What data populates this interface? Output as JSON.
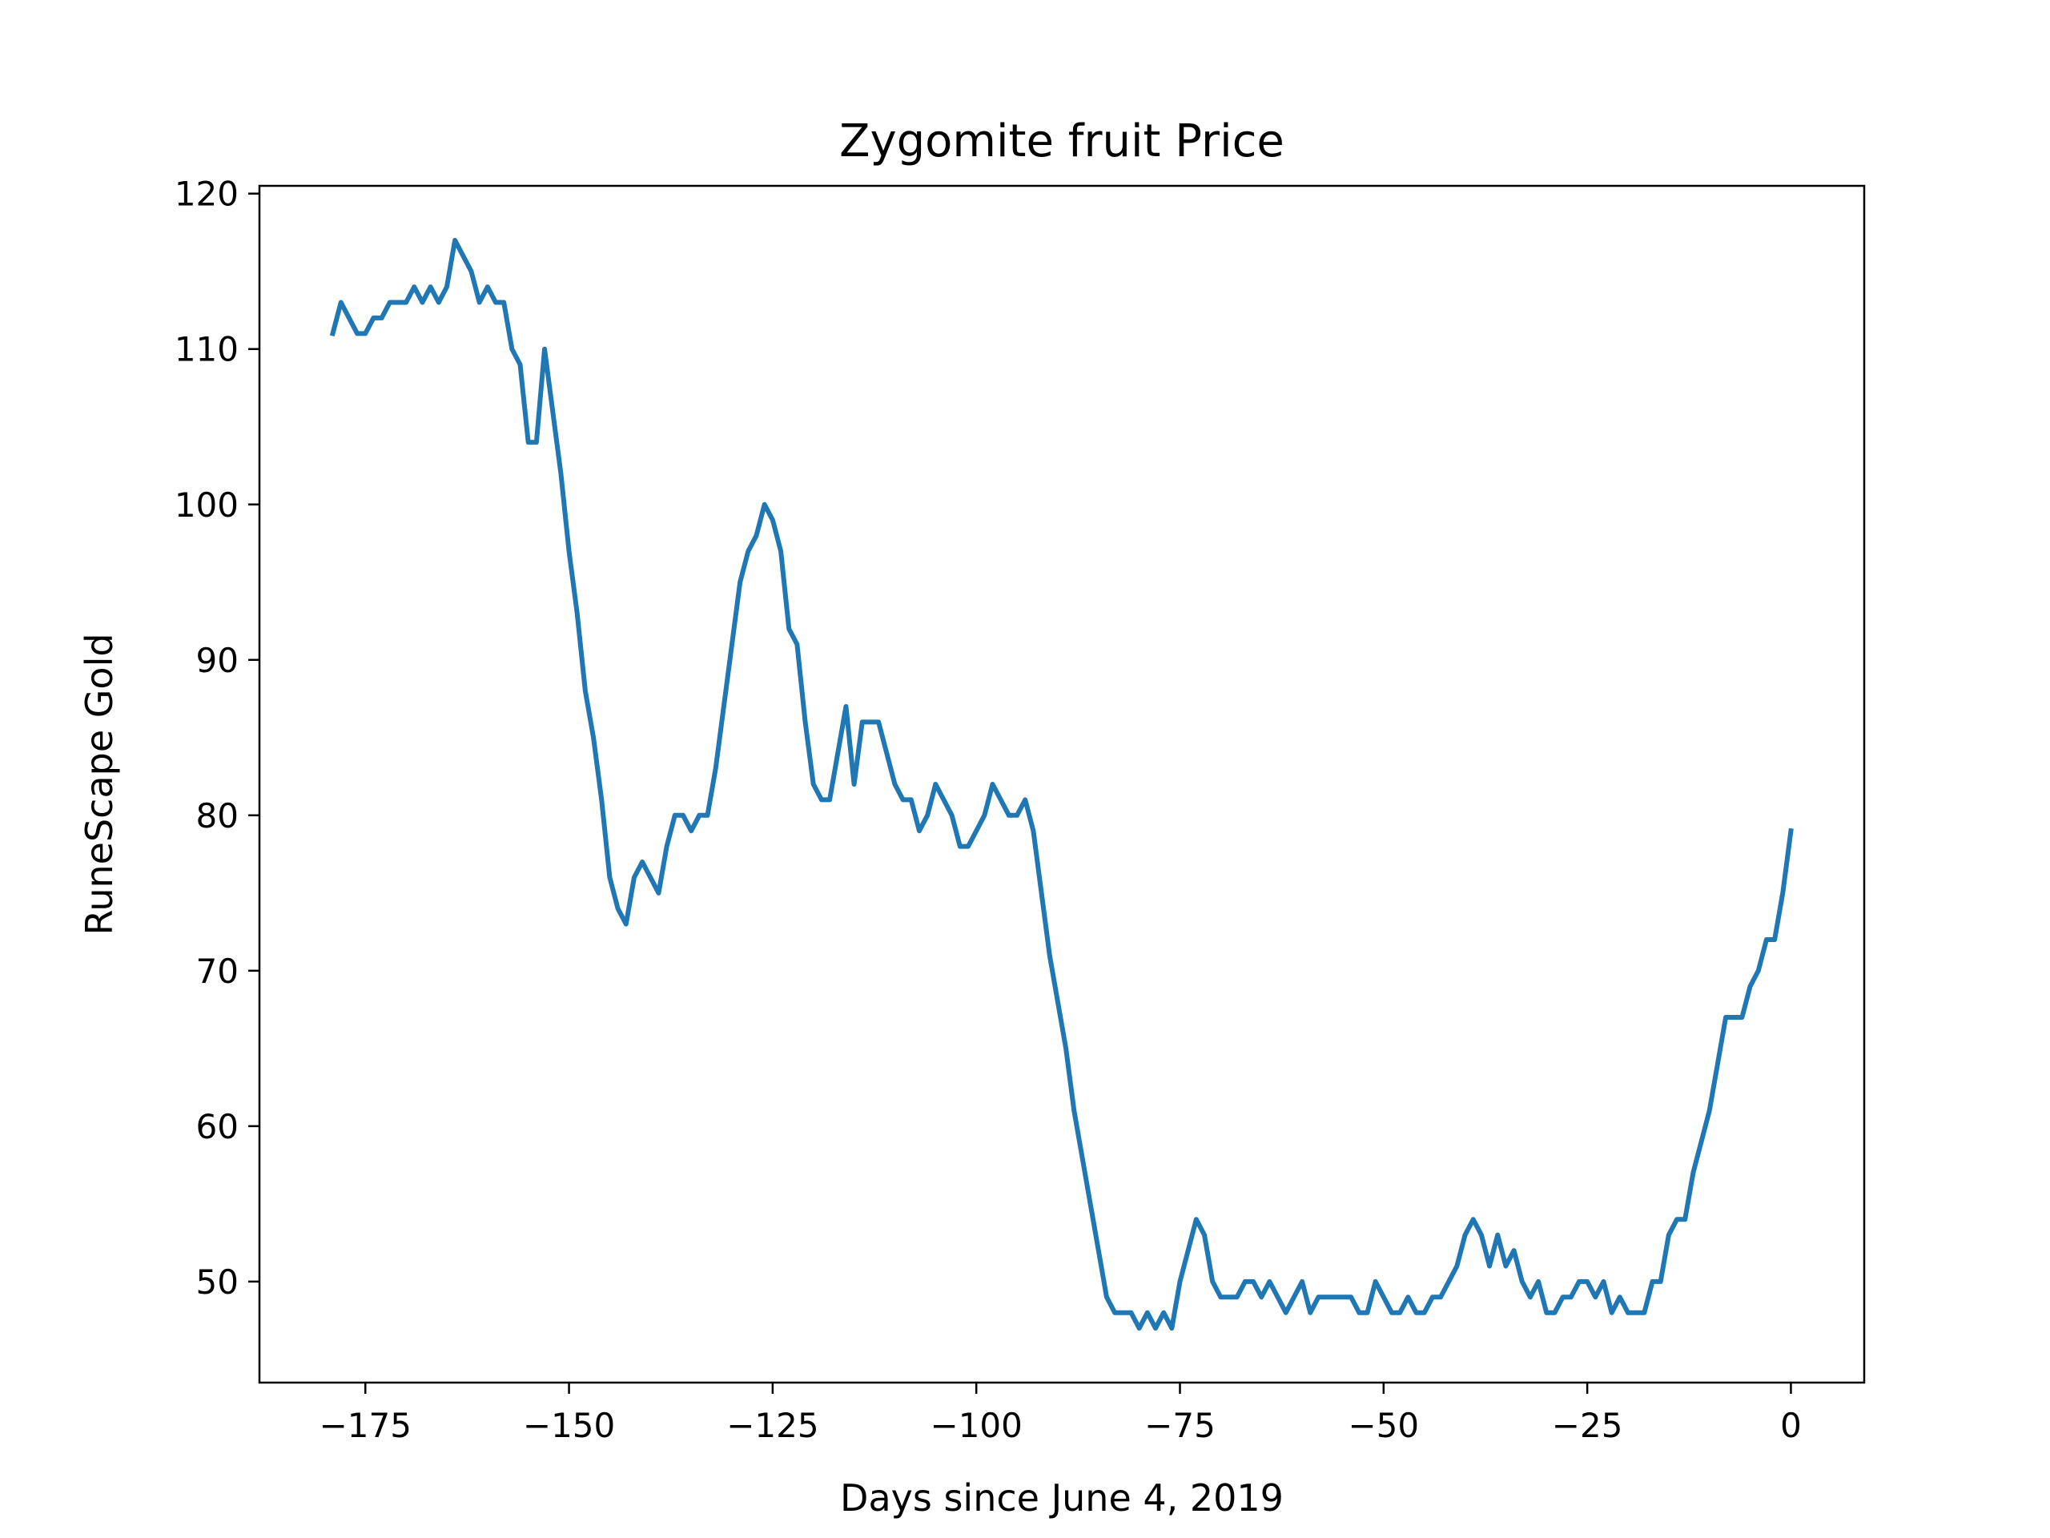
{
  "chart_data": {
    "type": "line",
    "title": "Zygomite fruit Price",
    "xlabel": "Days since June 4, 2019",
    "ylabel": "RuneScape Gold",
    "xlim": [
      -188,
      9
    ],
    "ylim": [
      43.5,
      120.5
    ],
    "xticks": [
      -175,
      -150,
      -125,
      -100,
      -75,
      -50,
      -25,
      0
    ],
    "xtick_labels": [
      "−175",
      "−150",
      "−125",
      "−100",
      "−75",
      "−50",
      "−25",
      "0"
    ],
    "yticks": [
      50,
      60,
      70,
      80,
      90,
      100,
      110,
      120
    ],
    "ytick_labels": [
      "50",
      "60",
      "70",
      "80",
      "90",
      "100",
      "110",
      "120"
    ],
    "grid": false,
    "line_color": "#1f77b4",
    "series": [
      {
        "name": "Zygomite fruit",
        "x": [
          -179,
          -178,
          -177,
          -176,
          -175,
          -174,
          -173,
          -172,
          -171,
          -170,
          -169,
          -168,
          -167,
          -166,
          -165,
          -164,
          -163,
          -162,
          -161,
          -160,
          -159,
          -158,
          -157,
          -156,
          -155,
          -154,
          -153,
          -152,
          -151,
          -150,
          -149,
          -148,
          -147,
          -146,
          -145,
          -144,
          -143,
          -142,
          -141,
          -140,
          -139,
          -138,
          -137,
          -136,
          -135,
          -134,
          -133,
          -132,
          -131,
          -130,
          -129,
          -128,
          -127,
          -126,
          -125,
          -124,
          -123,
          -122,
          -121,
          -120,
          -119,
          -118,
          -117,
          -116,
          -115,
          -114,
          -113,
          -112,
          -111,
          -110,
          -109,
          -108,
          -107,
          -106,
          -105,
          -104,
          -103,
          -102,
          -101,
          -100,
          -99,
          -98,
          -97,
          -96,
          -95,
          -94,
          -93,
          -92,
          -91,
          -90,
          -89,
          -88,
          -87,
          -86,
          -85,
          -84,
          -83,
          -82,
          -81,
          -80,
          -79,
          -78,
          -77,
          -76,
          -75,
          -74,
          -73,
          -72,
          -71,
          -70,
          -69,
          -68,
          -67,
          -66,
          -65,
          -64,
          -63,
          -62,
          -61,
          -60,
          -59,
          -58,
          -57,
          -56,
          -55,
          -54,
          -53,
          -52,
          -51,
          -50,
          -49,
          -48,
          -47,
          -46,
          -45,
          -44,
          -43,
          -42,
          -41,
          -40,
          -39,
          -38,
          -37,
          -36,
          -35,
          -34,
          -33,
          -32,
          -31,
          -30,
          -29,
          -28,
          -27,
          -26,
          -25,
          -24,
          -23,
          -22,
          -21,
          -20,
          -19,
          -18,
          -17,
          -16,
          -15,
          -14,
          -13,
          -12,
          -11,
          -10,
          -9,
          -8,
          -7,
          -6,
          -5,
          -4,
          -3,
          -2,
          -1,
          0
        ],
        "y": [
          111,
          113,
          112,
          111,
          111,
          112,
          112,
          113,
          113,
          113,
          114,
          113,
          114,
          113,
          114,
          117,
          116,
          115,
          113,
          114,
          113,
          113,
          110,
          109,
          104,
          104,
          110,
          106,
          102,
          97,
          93,
          88,
          85,
          81,
          76,
          74,
          73,
          76,
          77,
          76,
          75,
          78,
          80,
          80,
          79,
          80,
          80,
          83,
          87,
          91,
          95,
          97,
          98,
          100,
          99,
          97,
          92,
          91,
          86,
          82,
          81,
          81,
          84,
          87,
          82,
          86,
          86,
          86,
          84,
          82,
          81,
          81,
          79,
          80,
          82,
          81,
          80,
          78,
          78,
          79,
          80,
          82,
          81,
          80,
          80,
          81,
          79,
          75,
          71,
          68,
          65,
          61,
          58,
          55,
          52,
          49,
          48,
          48,
          48,
          47,
          48,
          47,
          48,
          47,
          50,
          52,
          54,
          53,
          50,
          49,
          49,
          49,
          50,
          50,
          49,
          50,
          49,
          48,
          49,
          50,
          48,
          49,
          49,
          49,
          49,
          49,
          48,
          48,
          50,
          49,
          48,
          48,
          49,
          48,
          48,
          49,
          49,
          50,
          51,
          53,
          54,
          53,
          51,
          53,
          51,
          52,
          50,
          49,
          50,
          48,
          48,
          49,
          49,
          50,
          50,
          49,
          50,
          48,
          49,
          48,
          48,
          48,
          50,
          50,
          53,
          54,
          54,
          57,
          59,
          61,
          64,
          67,
          67,
          67,
          69,
          70,
          72,
          72,
          75,
          79
        ]
      }
    ]
  }
}
